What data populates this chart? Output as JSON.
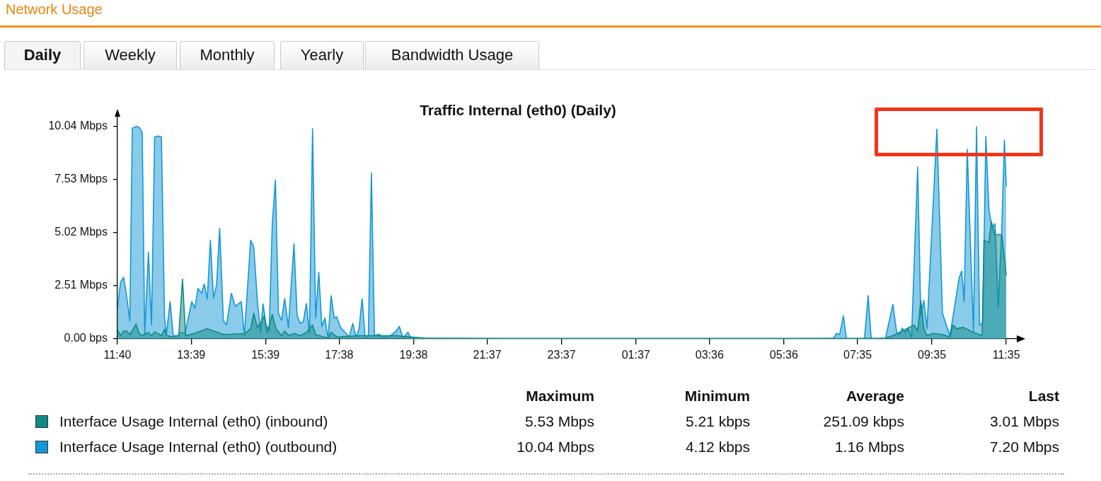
{
  "chart_data": {
    "type": "area",
    "title": "Traffic Internal (eth0) (Daily)",
    "annotations": [
      "Network Usage",
      "Daily",
      "Weekly",
      "Monthly",
      "Yearly",
      "Bandwidth Usage",
      "Maximum",
      "Minimum",
      "Average",
      "Last",
      "5.53 Mbps",
      "5.21 kbps",
      "251.09 kbps",
      "3.01 Mbps",
      "10.04 Mbps",
      "4.12 kbps",
      "1.16 Mbps",
      "7.20 Mbps"
    ],
    "xlim": [
      "--01-01T11:40",
      "--01-02T11:52"
    ],
    "xticks": [
      {
        "value": "--01-01T11:40",
        "label": "11:40"
      },
      {
        "value": "--01-01T13:39",
        "label": "13:39"
      },
      {
        "value": "--01-01T15:39",
        "label": "15:39"
      },
      {
        "value": "--01-01T17:38",
        "label": "17:38"
      },
      {
        "value": "--01-01T19:38",
        "label": "19:38"
      },
      {
        "value": "--01-01T21:37",
        "label": "21:37"
      },
      {
        "value": "--01-01T23:37",
        "label": "23:37"
      },
      {
        "value": "--01-02T01:37",
        "label": "01:37"
      },
      {
        "value": "--01-02T03:36",
        "label": "03:36"
      },
      {
        "value": "--01-02T05:36",
        "label": "05:36"
      },
      {
        "value": "--01-02T07:35",
        "label": "07:35"
      },
      {
        "value": "--01-02T09:35",
        "label": "09:35"
      },
      {
        "value": "--01-02T11:35",
        "label": "11:35"
      }
    ],
    "ylim": [
      0,
      10.5
    ],
    "yticks": [
      {
        "value": 0,
        "label": "0.00 bps"
      },
      {
        "value": 2.51,
        "label": "2.51 Mbps"
      },
      {
        "value": 5.02,
        "label": "5.02 Mbps"
      },
      {
        "value": 7.53,
        "label": "7.53 Mbps"
      },
      {
        "value": 10.04,
        "label": "10.04 Mbps"
      }
    ],
    "legend": "bottom",
    "series": [
      {
        "name": "Interface Usage Internal (eth0) (inbound)",
        "color": "#0f8a84",
        "x": [
          "--01-01T11:40",
          "--01-01T11:45",
          "--01-01T11:50",
          "--01-01T11:55",
          "--01-01T12:00",
          "--01-01T12:10",
          "--01-01T12:15",
          "--01-01T12:20",
          "--01-01T12:30",
          "--01-01T12:35",
          "--01-01T12:40",
          "--01-01T12:51",
          "--01-01T12:56",
          "--01-01T13:00",
          "--01-01T13:10",
          "--01-01T13:19",
          "--01-01T13:25",
          "--01-01T13:30",
          "--01-01T13:44",
          "--01-01T14:05",
          "--01-01T14:32",
          "--01-01T15:06",
          "--01-01T15:15",
          "--01-01T15:20",
          "--01-01T15:26",
          "--01-01T15:31",
          "--01-01T15:37",
          "--01-01T15:42",
          "--01-01T15:50",
          "--01-01T15:56",
          "--01-01T16:05",
          "--01-01T16:10",
          "--01-01T16:17",
          "--01-01T16:25",
          "--01-01T16:35",
          "--01-01T16:45",
          "--01-01T16:55",
          "--01-01T17:00",
          "--01-01T17:20",
          "--01-01T17:25",
          "--01-01T17:34",
          "--01-01T18:15",
          "--01-01T19:10",
          "--01-01T19:56",
          "--01-01T22:00",
          "--01-02T02:00",
          "--01-02T06:00",
          "--01-02T08:20",
          "--01-02T08:32",
          "--01-02T09:06",
          "--01-02T09:12",
          "--01-02T09:17",
          "--01-02T09:22",
          "--01-02T09:27",
          "--01-02T09:37",
          "--01-02T09:52",
          "--01-02T10:04",
          "--01-02T10:09",
          "--01-02T10:15",
          "--01-02T10:25",
          "--01-02T10:42",
          "--01-02T10:56",
          "--01-02T10:59",
          "--01-02T11:07",
          "--01-02T11:11",
          "--01-02T11:17",
          "--01-02T11:23",
          "--01-02T11:28",
          "--01-02T11:35"
        ],
        "values": [
          0.42,
          0.15,
          0.37,
          0.37,
          0.2,
          0.7,
          0.25,
          0.15,
          0.31,
          0.15,
          0.33,
          0.15,
          0.45,
          0.15,
          0.09,
          0.15,
          2.82,
          0.15,
          0.25,
          0.48,
          0.2,
          0.25,
          0.48,
          1.2,
          0.54,
          0.76,
          1.09,
          0.31,
          1.15,
          0.48,
          0.15,
          0.37,
          0.15,
          0.25,
          0.15,
          0.31,
          0.65,
          0.2,
          0.03,
          0.31,
          0.09,
          0.15,
          0.15,
          0.03,
          0.01,
          0.01,
          0.01,
          0.03,
          0.15,
          0.65,
          0.37,
          1.82,
          0.48,
          0.15,
          0.26,
          0.2,
          0.09,
          0.65,
          0.48,
          0.54,
          0.31,
          0.15,
          4.66,
          4.55,
          5.53,
          4.89,
          4.94,
          4.89,
          3.01
        ]
      },
      {
        "name": "Interface Usage Internal (eth0) (outbound)",
        "color": "#1597d6",
        "x": [
          "--01-01T11:40",
          "--01-01T11:45",
          "--01-01T11:50",
          "--01-01T11:55",
          "--01-01T12:00",
          "--01-01T12:04",
          "--01-01T12:11",
          "--01-01T12:15",
          "--01-01T12:20",
          "--01-01T12:24",
          "--01-01T12:30",
          "--01-01T12:35",
          "--01-01T12:40",
          "--01-01T12:45",
          "--01-01T12:51",
          "--01-01T12:56",
          "--01-01T12:59",
          "--01-01T13:05",
          "--01-01T13:10",
          "--01-01T13:17",
          "--01-01T13:23",
          "--01-01T13:29",
          "--01-01T13:40",
          "--01-01T13:45",
          "--01-01T13:50",
          "--01-01T13:56",
          "--01-01T14:00",
          "--01-01T14:05",
          "--01-01T14:10",
          "--01-01T14:15",
          "--01-01T14:20",
          "--01-01T14:25",
          "--01-01T14:31",
          "--01-01T14:36",
          "--01-01T14:44",
          "--01-01T14:50",
          "--01-01T15:00",
          "--01-01T15:05",
          "--01-01T15:15",
          "--01-01T15:20",
          "--01-01T15:26",
          "--01-01T15:31",
          "--01-01T15:35",
          "--01-01T15:40",
          "--01-01T15:45",
          "--01-01T15:50",
          "--01-01T15:55",
          "--01-01T16:00",
          "--01-01T16:05",
          "--01-01T16:10",
          "--01-01T16:16",
          "--01-01T16:25",
          "--01-01T16:30",
          "--01-01T16:35",
          "--01-01T16:40",
          "--01-01T16:45",
          "--01-01T16:50",
          "--01-01T16:55",
          "--01-01T17:00",
          "--01-01T17:05",
          "--01-01T17:10",
          "--01-01T17:15",
          "--01-01T17:20",
          "--01-01T17:25",
          "--01-01T17:30",
          "--01-01T17:34",
          "--01-01T17:40",
          "--01-01T17:54",
          "--01-01T18:00",
          "--01-01T18:05",
          "--01-01T18:10",
          "--01-01T18:15",
          "--01-01T18:20",
          "--01-01T18:25",
          "--01-01T18:30",
          "--01-01T18:35",
          "--01-01T18:42",
          "--01-01T18:48",
          "--01-01T18:57",
          "--01-01T19:03",
          "--01-01T19:10",
          "--01-01T19:15",
          "--01-01T19:21",
          "--01-01T19:29",
          "--01-01T19:34",
          "--01-01T20:30",
          "--01-01T22:00",
          "--01-02T00:00",
          "--01-02T02:00",
          "--01-02T04:00",
          "--01-02T06:00",
          "--01-02T06:56",
          "--01-02T07:01",
          "--01-02T07:06",
          "--01-02T07:12",
          "--01-02T07:17",
          "--01-02T07:46",
          "--01-02T07:52",
          "--01-02T07:57",
          "--01-02T08:20",
          "--01-02T08:32",
          "--01-02T08:38",
          "--01-02T08:43",
          "--01-02T08:47",
          "--01-02T08:52",
          "--01-02T08:57",
          "--01-02T09:02",
          "--01-02T09:12",
          "--01-02T09:17",
          "--01-02T09:22",
          "--01-02T09:27",
          "--01-02T09:43",
          "--01-02T09:52",
          "--01-02T10:04",
          "--01-02T10:19",
          "--01-02T10:23",
          "--01-02T10:27",
          "--01-02T10:32",
          "--01-02T10:42",
          "--01-02T10:47",
          "--01-02T10:52",
          "--01-02T10:57",
          "--01-02T11:02",
          "--01-02T11:07",
          "--01-02T11:12",
          "--01-02T11:17",
          "--01-02T11:22",
          "--01-02T11:28",
          "--01-02T11:32",
          "--01-02T11:35"
        ],
        "values": [
          1.43,
          2.68,
          2.91,
          1.99,
          0.85,
          9.96,
          10.04,
          10,
          9.76,
          0.2,
          4.1,
          0.65,
          9.54,
          9.59,
          9.54,
          0.98,
          0.2,
          1.76,
          0.15,
          0.15,
          0.31,
          0.25,
          1.76,
          1.45,
          2.38,
          2.15,
          2.6,
          1.87,
          4.66,
          1.93,
          2.54,
          5.22,
          0.87,
          0.65,
          2.15,
          1.54,
          1.76,
          0.15,
          4.66,
          4.35,
          1.76,
          0.31,
          1.65,
          0.65,
          0.42,
          5.44,
          7.51,
          1.2,
          0.87,
          1.9,
          0.54,
          4.5,
          1.12,
          0.73,
          0.81,
          1.67,
          0.26,
          9.93,
          0.98,
          3.15,
          0.59,
          0.98,
          0,
          2.04,
          0.98,
          1.04,
          0.54,
          0.09,
          0.73,
          0.09,
          0.45,
          1.9,
          0.03,
          0.09,
          7.84,
          0.15,
          0.22,
          0.09,
          0.09,
          0.2,
          0.37,
          0.59,
          0.03,
          0.31,
          0.03,
          0.02,
          0.02,
          0.02,
          0.02,
          0.02,
          0.02,
          0.03,
          0.26,
          0.2,
          1.09,
          0,
          0,
          2.04,
          0,
          0.03,
          1.63,
          0.31,
          0.2,
          0.51,
          0.31,
          0.48,
          0.03,
          8.12,
          1.09,
          1.82,
          0.48,
          9.91,
          1.2,
          0.15,
          2.88,
          3.21,
          1.76,
          8.96,
          0.37,
          10.02,
          0.65,
          0.76,
          9.57,
          6.11,
          5.28,
          5.44,
          1.48,
          5.44,
          9.4,
          7.2
        ]
      }
    ]
  }
}
